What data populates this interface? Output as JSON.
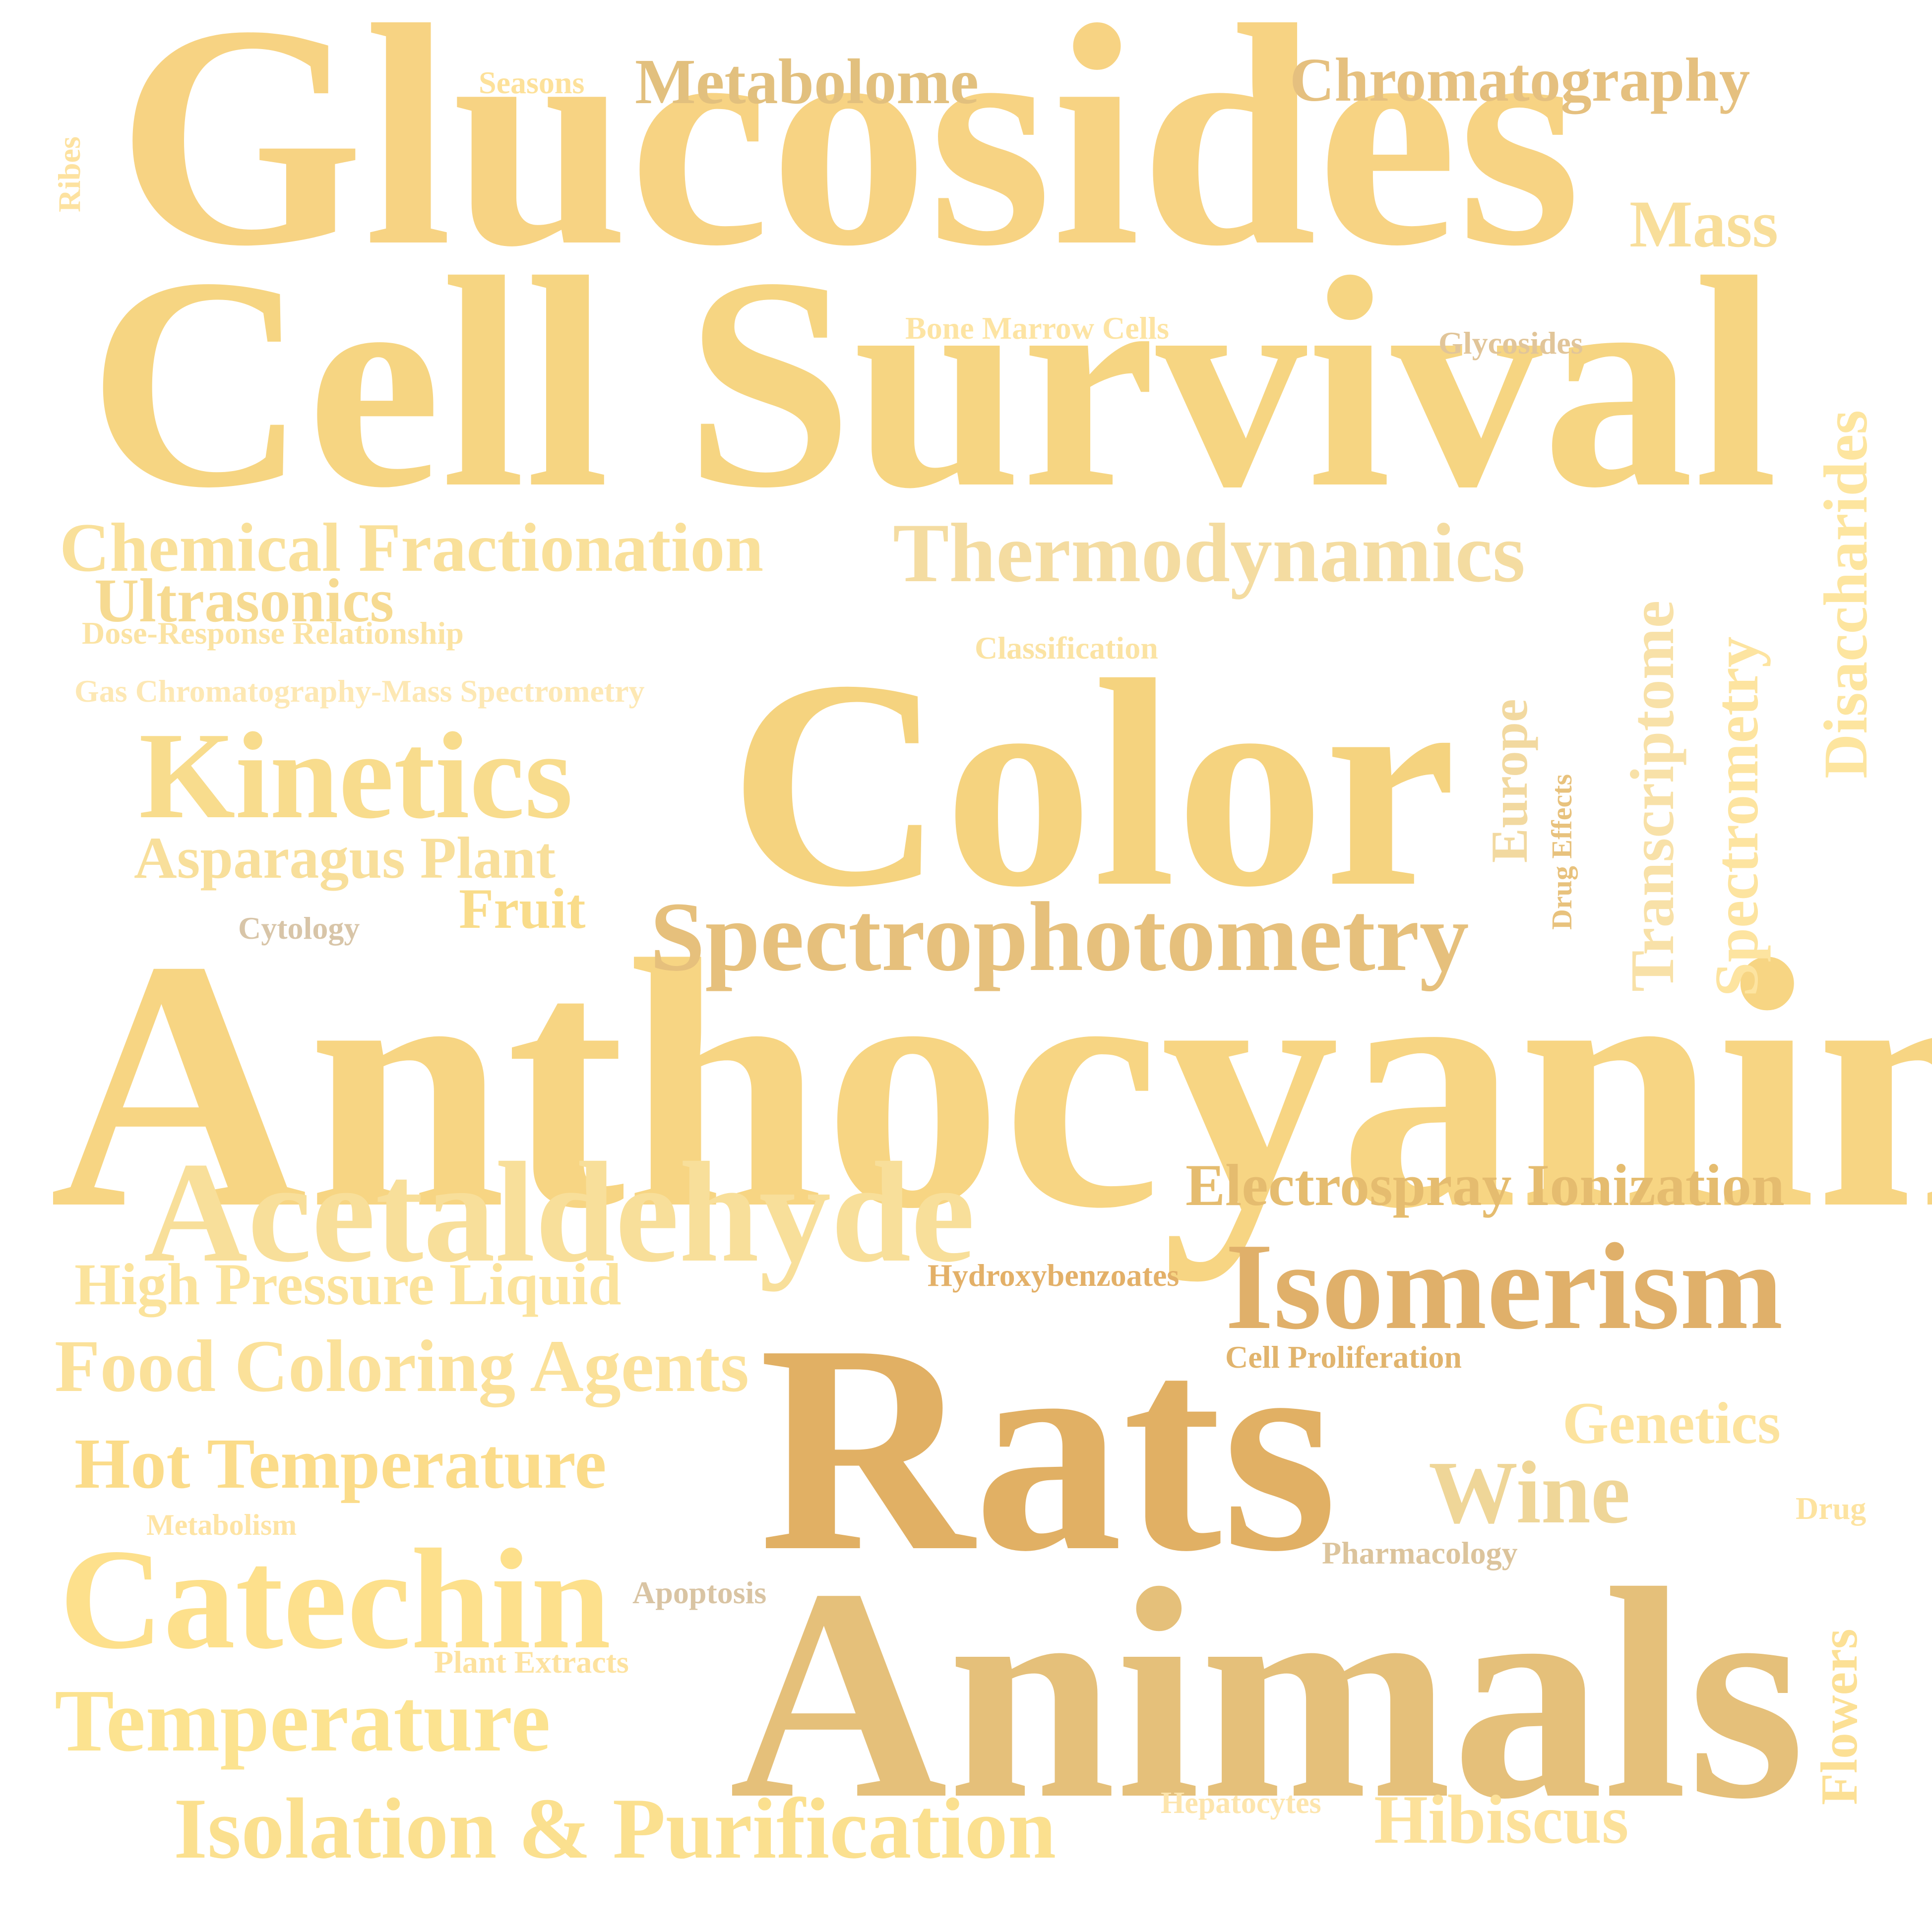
{
  "words": [
    {
      "text": "Glucosides",
      "color": "#f7d383"
    },
    {
      "text": "Cell Survival",
      "color": "#f6d582"
    },
    {
      "text": "Anthocyanins",
      "color": "#f7d583"
    },
    {
      "text": "Color",
      "color": "#f5d37f"
    },
    {
      "text": "Rats",
      "color": "#e1b064"
    },
    {
      "text": "Animals",
      "color": "#e5c07a"
    },
    {
      "text": "Acetaldehyde",
      "color": "#f8df9a"
    },
    {
      "text": "Catechin",
      "color": "#fde08c"
    },
    {
      "text": "Isomerism",
      "color": "#e0b06a"
    },
    {
      "text": "Spectrophotometry",
      "color": "#e6c07c"
    },
    {
      "text": "Kinetics",
      "color": "#f8dc8d"
    },
    {
      "text": "Thermodynamics",
      "color": "#f4dca1"
    },
    {
      "text": "Chemical Fractionation",
      "color": "#f9e09a"
    },
    {
      "text": "Temperature",
      "color": "#fce390"
    },
    {
      "text": "Isolation & Purification",
      "color": "#fbe08f"
    },
    {
      "text": "Food Coloring Agents",
      "color": "#fbe19a"
    },
    {
      "text": "Hot Temperature",
      "color": "#fbdc8a"
    },
    {
      "text": "High Pressure Liquid",
      "color": "#fbe39c"
    },
    {
      "text": "Asparagus Plant",
      "color": "#f8df9b"
    },
    {
      "text": "Electrospray Ionization",
      "color": "#e5bc6f"
    },
    {
      "text": "Metabolome",
      "color": "#e2c07e"
    },
    {
      "text": "Chromatography",
      "color": "#e5c07f"
    },
    {
      "text": "Ultrasonics",
      "color": "#f6da91"
    },
    {
      "text": "Fruit",
      "color": "#f9dc8a"
    },
    {
      "text": "Mass",
      "color": "#f8de9a"
    },
    {
      "text": "Wine",
      "color": "#efd698"
    },
    {
      "text": "Hibiscus",
      "color": "#fce19a"
    },
    {
      "text": "Genetics",
      "color": "#fce39e"
    },
    {
      "text": "Disaccharides",
      "color": "#fde59f"
    },
    {
      "text": "Spectrometry",
      "color": "#fde4a0"
    },
    {
      "text": "Transcriptome",
      "color": "#f8e1a8"
    },
    {
      "text": "Flowers",
      "color": "#fce095"
    },
    {
      "text": "Europe",
      "color": "#f2d9a0"
    },
    {
      "text": "Drug Effects",
      "color": "#e8c27d"
    },
    {
      "text": "Dose-Response Relationship",
      "color": "#fbe3a3"
    },
    {
      "text": "Gas Chromatography-Mass Spectrometry",
      "color": "#fde8b4"
    },
    {
      "text": "Classification",
      "color": "#fbe3a3"
    },
    {
      "text": "Bone Marrow Cells",
      "color": "#fde4a3"
    },
    {
      "text": "Glycosides",
      "color": "#e1c599"
    },
    {
      "text": "Seasons",
      "color": "#fde19a"
    },
    {
      "text": "Ribes",
      "color": "#fde2a0"
    },
    {
      "text": "Cytology",
      "color": "#d8c5a8"
    },
    {
      "text": "Hydroxybenzoates",
      "color": "#e3b068"
    },
    {
      "text": "Cell Proliferation",
      "color": "#e1b46d"
    },
    {
      "text": "Metabolism",
      "color": "#fee4a4"
    },
    {
      "text": "Apoptosis",
      "color": "#d9c4a3"
    },
    {
      "text": "Plant Extracts",
      "color": "#fde29f"
    },
    {
      "text": "Pharmacology",
      "color": "#dcc49c"
    },
    {
      "text": "Drug",
      "color": "#fde3a0"
    },
    {
      "text": "Hepatocytes",
      "color": "#fde5ad"
    }
  ]
}
